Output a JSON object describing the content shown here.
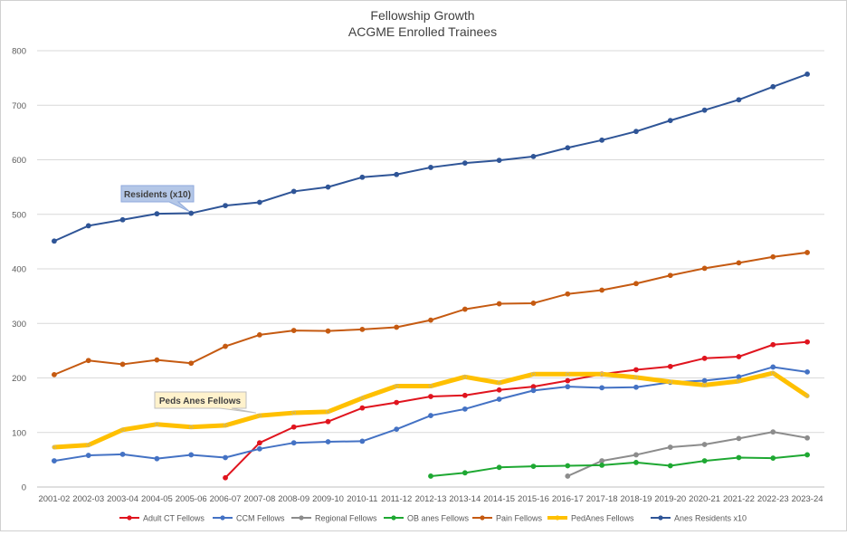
{
  "chart_data": {
    "type": "line",
    "title": "Fellowship Growth",
    "subtitle": "ACGME Enrolled Trainees",
    "xlabel": "",
    "ylabel": "",
    "ylim": [
      0,
      800
    ],
    "yticks": [
      0,
      100,
      200,
      300,
      400,
      500,
      600,
      700,
      800
    ],
    "grid": true,
    "legend_position": "bottom",
    "categories": [
      "2001-02",
      "2002-03",
      "2003-04",
      "2004-05",
      "2005-06",
      "2006-07",
      "2007-08",
      "2008-09",
      "2009-10",
      "2010-11",
      "2011-12",
      "2012-13",
      "2013-14",
      "2014-15",
      "2015-16",
      "2016-17",
      "2017-18",
      "2018-19",
      "2019-20",
      "2020-21",
      "2021-22",
      "2022-23",
      "2023-24"
    ],
    "series": [
      {
        "name": "Adult CT Fellows",
        "color": "#e0141e",
        "width": 2,
        "values": [
          null,
          null,
          null,
          null,
          null,
          17,
          81,
          110,
          120,
          145,
          155,
          166,
          168,
          178,
          184,
          195,
          207,
          215,
          221,
          236,
          239,
          261,
          266
        ]
      },
      {
        "name": "CCM Fellows",
        "color": "#4472c4",
        "width": 2,
        "values": [
          48,
          58,
          60,
          52,
          59,
          54,
          70,
          81,
          83,
          84,
          106,
          131,
          143,
          161,
          177,
          184,
          182,
          183,
          192,
          195,
          202,
          220,
          211
        ]
      },
      {
        "name": "Regional Fellows",
        "color": "#8c8c8c",
        "width": 2,
        "values": [
          null,
          null,
          null,
          null,
          null,
          null,
          null,
          null,
          null,
          null,
          null,
          null,
          null,
          null,
          null,
          20,
          48,
          59,
          73,
          78,
          89,
          101,
          90
        ]
      },
      {
        "name": "OB anes Fellows",
        "color": "#1ea832",
        "width": 2,
        "values": [
          null,
          null,
          null,
          null,
          null,
          null,
          null,
          null,
          null,
          null,
          null,
          20,
          26,
          36,
          38,
          39,
          40,
          45,
          39,
          48,
          54,
          53,
          59
        ]
      },
      {
        "name": "Pain Fellows",
        "color": "#c55a11",
        "width": 2,
        "values": [
          206,
          232,
          225,
          233,
          227,
          258,
          279,
          287,
          286,
          289,
          293,
          306,
          326,
          336,
          337,
          354,
          361,
          373,
          388,
          401,
          411,
          422,
          430
        ]
      },
      {
        "name": "PedAnes Fellows",
        "color": "#ffc000",
        "width": 5,
        "values": [
          73,
          77,
          105,
          115,
          110,
          113,
          131,
          136,
          138,
          163,
          185,
          185,
          202,
          191,
          207,
          207,
          207,
          201,
          193,
          187,
          194,
          209,
          167
        ]
      },
      {
        "name": "Anes Residents x10",
        "color": "#2f5597",
        "width": 2,
        "values": [
          451,
          479,
          490,
          501,
          502,
          516,
          522,
          542,
          550,
          568,
          573,
          586,
          594,
          599,
          606,
          622,
          636,
          652,
          672,
          691,
          710,
          734,
          757
        ]
      }
    ],
    "annotations": [
      {
        "text": "Residents (x10)",
        "series": "Anes Residents x10"
      },
      {
        "text": "Peds Anes Fellows",
        "series": "PedAnes Fellows"
      }
    ]
  }
}
